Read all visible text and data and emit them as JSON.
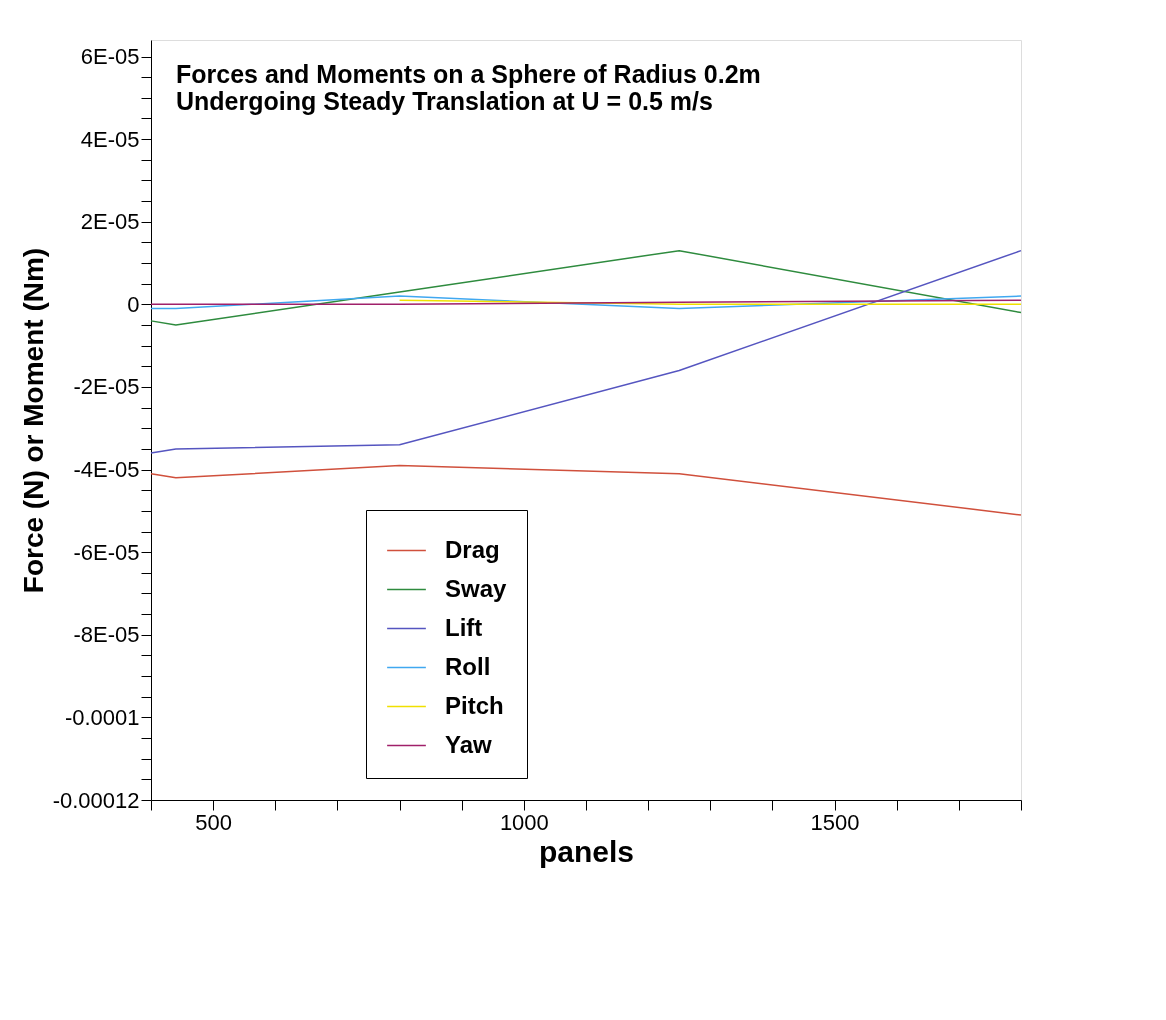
{
  "chart_data": {
    "type": "line",
    "title": [
      "Forces and Moments on a Sphere of Radius 0.2m",
      "Undergoing Steady Translation at U = 0.5 m/s"
    ],
    "xlabel": "panels",
    "ylabel": "Force (N) or Moment (Nm)",
    "x": [
      400,
      440,
      800,
      1250,
      1800
    ],
    "series": [
      {
        "name": "Drag",
        "color": "#d0503c",
        "values": [
          -4.1e-05,
          -4.2e-05,
          -3.9e-05,
          -4.1e-05,
          -5.1e-05
        ]
      },
      {
        "name": "Sway",
        "color": "#2e8b3e",
        "values": [
          -4e-06,
          -5e-06,
          3e-06,
          1.3e-05,
          -2e-06
        ]
      },
      {
        "name": "Lift",
        "color": "#5555c0",
        "values": [
          -3.6e-05,
          -3.5e-05,
          -3.4e-05,
          -1.6e-05,
          1.3e-05
        ]
      },
      {
        "name": "Roll",
        "color": "#40a8f0",
        "values": [
          -1e-06,
          -1e-06,
          2e-06,
          -1e-06,
          2e-06
        ]
      },
      {
        "name": "Pitch",
        "color": "#f0e000",
        "values": [
          null,
          null,
          1e-06,
          0,
          0
        ]
      },
      {
        "name": "Yaw",
        "color": "#a0206a",
        "values": [
          0,
          0,
          0,
          5e-07,
          1e-06
        ]
      }
    ],
    "xlim": [
      400,
      1800
    ],
    "xticks": [
      {
        "value": 400,
        "label": null
      },
      500,
      {
        "value": 600,
        "label": null
      },
      {
        "value": 700,
        "label": null
      },
      {
        "value": 800,
        "label": null
      },
      {
        "value": 900,
        "label": null
      },
      1000,
      {
        "value": 1100,
        "label": null
      },
      {
        "value": 1200,
        "label": null
      },
      {
        "value": 1300,
        "label": null
      },
      {
        "value": 1400,
        "label": null
      },
      1500,
      {
        "value": 1600,
        "label": null
      },
      {
        "value": 1700,
        "label": null
      },
      {
        "value": 1800,
        "label": null
      }
    ],
    "ylim": [
      -0.00012,
      6.4e-05
    ],
    "yticks": [
      {
        "value": -0.00012,
        "label": "-0.00012"
      },
      {
        "value": -0.000115,
        "label": null
      },
      {
        "value": -0.00011,
        "label": null
      },
      {
        "value": -0.000105,
        "label": null
      },
      {
        "value": -0.0001,
        "label": "-0.0001"
      },
      {
        "value": -9.5e-05,
        "label": null
      },
      {
        "value": -9e-05,
        "label": null
      },
      {
        "value": -8.5e-05,
        "label": null
      },
      {
        "value": -8e-05,
        "label": "-8E-05"
      },
      {
        "value": -7.5e-05,
        "label": null
      },
      {
        "value": -7e-05,
        "label": null
      },
      {
        "value": -6.5e-05,
        "label": null
      },
      {
        "value": -6e-05,
        "label": "-6E-05"
      },
      {
        "value": -5.5e-05,
        "label": null
      },
      {
        "value": -5e-05,
        "label": null
      },
      {
        "value": -4.5e-05,
        "label": null
      },
      {
        "value": -4e-05,
        "label": "-4E-05"
      },
      {
        "value": -3.5e-05,
        "label": null
      },
      {
        "value": -3e-05,
        "label": null
      },
      {
        "value": -2.5e-05,
        "label": null
      },
      {
        "value": -2e-05,
        "label": "-2E-05"
      },
      {
        "value": -1.5e-05,
        "label": null
      },
      {
        "value": -1e-05,
        "label": null
      },
      {
        "value": -5e-06,
        "label": null
      },
      0,
      {
        "value": 5e-06,
        "label": null
      },
      {
        "value": 1e-05,
        "label": null
      },
      {
        "value": 1.5e-05,
        "label": null
      },
      {
        "value": 2e-05,
        "label": "2E-05"
      },
      {
        "value": 2.5e-05,
        "label": null
      },
      {
        "value": 3e-05,
        "label": null
      },
      {
        "value": 3.5e-05,
        "label": null
      },
      {
        "value": 4e-05,
        "label": "4E-05"
      },
      {
        "value": 4.5e-05,
        "label": null
      },
      {
        "value": 5e-05,
        "label": null
      },
      {
        "value": 5.5e-05,
        "label": null
      },
      {
        "value": 6e-05,
        "label": "6E-05"
      }
    ],
    "grid": false,
    "legend": "bottom",
    "marker": "none",
    "line_style": "solid"
  }
}
